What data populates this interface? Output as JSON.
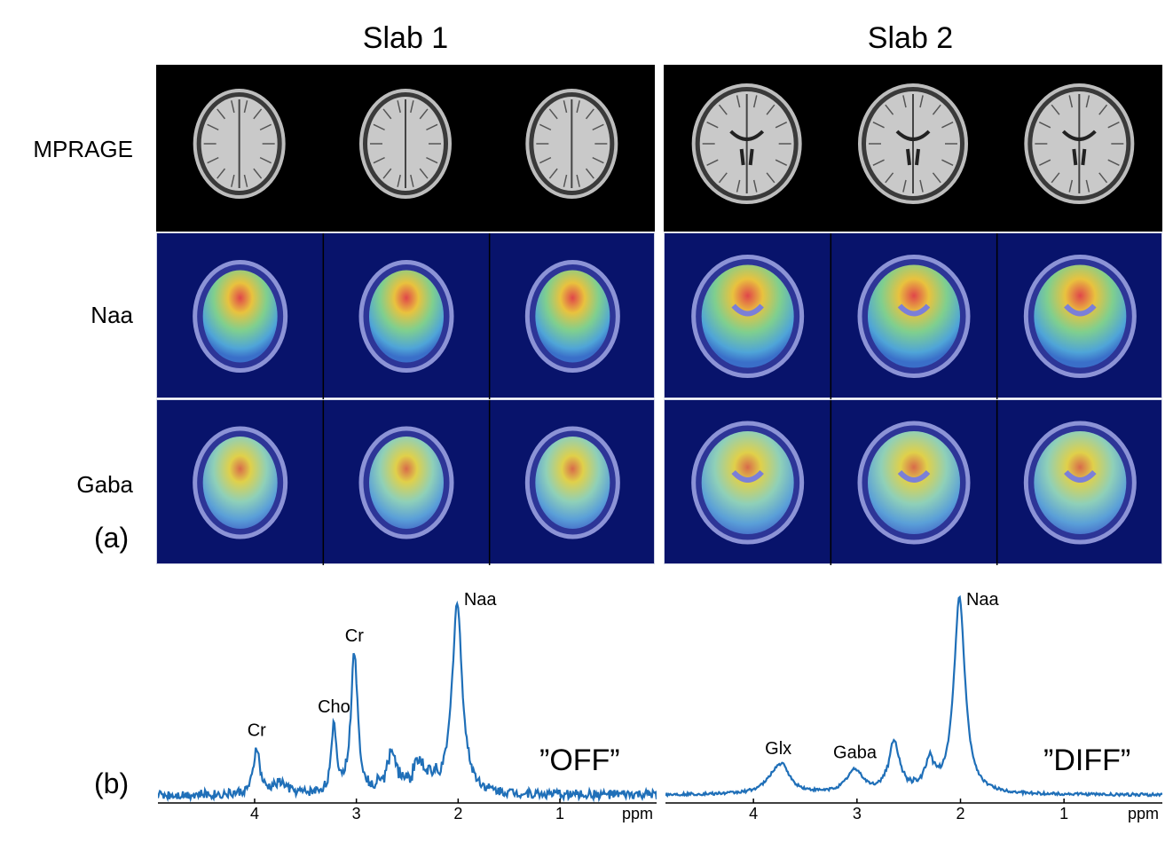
{
  "figure": {
    "slab_titles": [
      "Slab 1",
      "Slab 2"
    ],
    "row_labels": [
      "MPRAGE",
      "Naa",
      "Gaba"
    ],
    "panel_a_label": "(a)",
    "panel_b_label": "(b)"
  },
  "spectra": [
    {
      "condition_label": "”OFF”",
      "x_unit": "ppm",
      "x_ticks": [
        "4",
        "3",
        "2",
        "1"
      ],
      "peaks": [
        {
          "label": "Cr",
          "ppm": 3.98
        },
        {
          "label": "Cho",
          "ppm": 3.22
        },
        {
          "label": "Cr",
          "ppm": 3.02
        },
        {
          "label": "Naa",
          "ppm": 2.01
        }
      ]
    },
    {
      "condition_label": "”DIFF”",
      "x_unit": "ppm",
      "x_ticks": [
        "4",
        "3",
        "2",
        "1"
      ],
      "peaks": [
        {
          "label": "Glx",
          "ppm": 3.76
        },
        {
          "label": "Gaba",
          "ppm": 3.02
        },
        {
          "label": "Naa",
          "ppm": 2.01
        }
      ]
    }
  ],
  "colors": {
    "spectrum_line": "#1f6fb8",
    "map_background": "#08136b",
    "mri_background": "#000000"
  }
}
